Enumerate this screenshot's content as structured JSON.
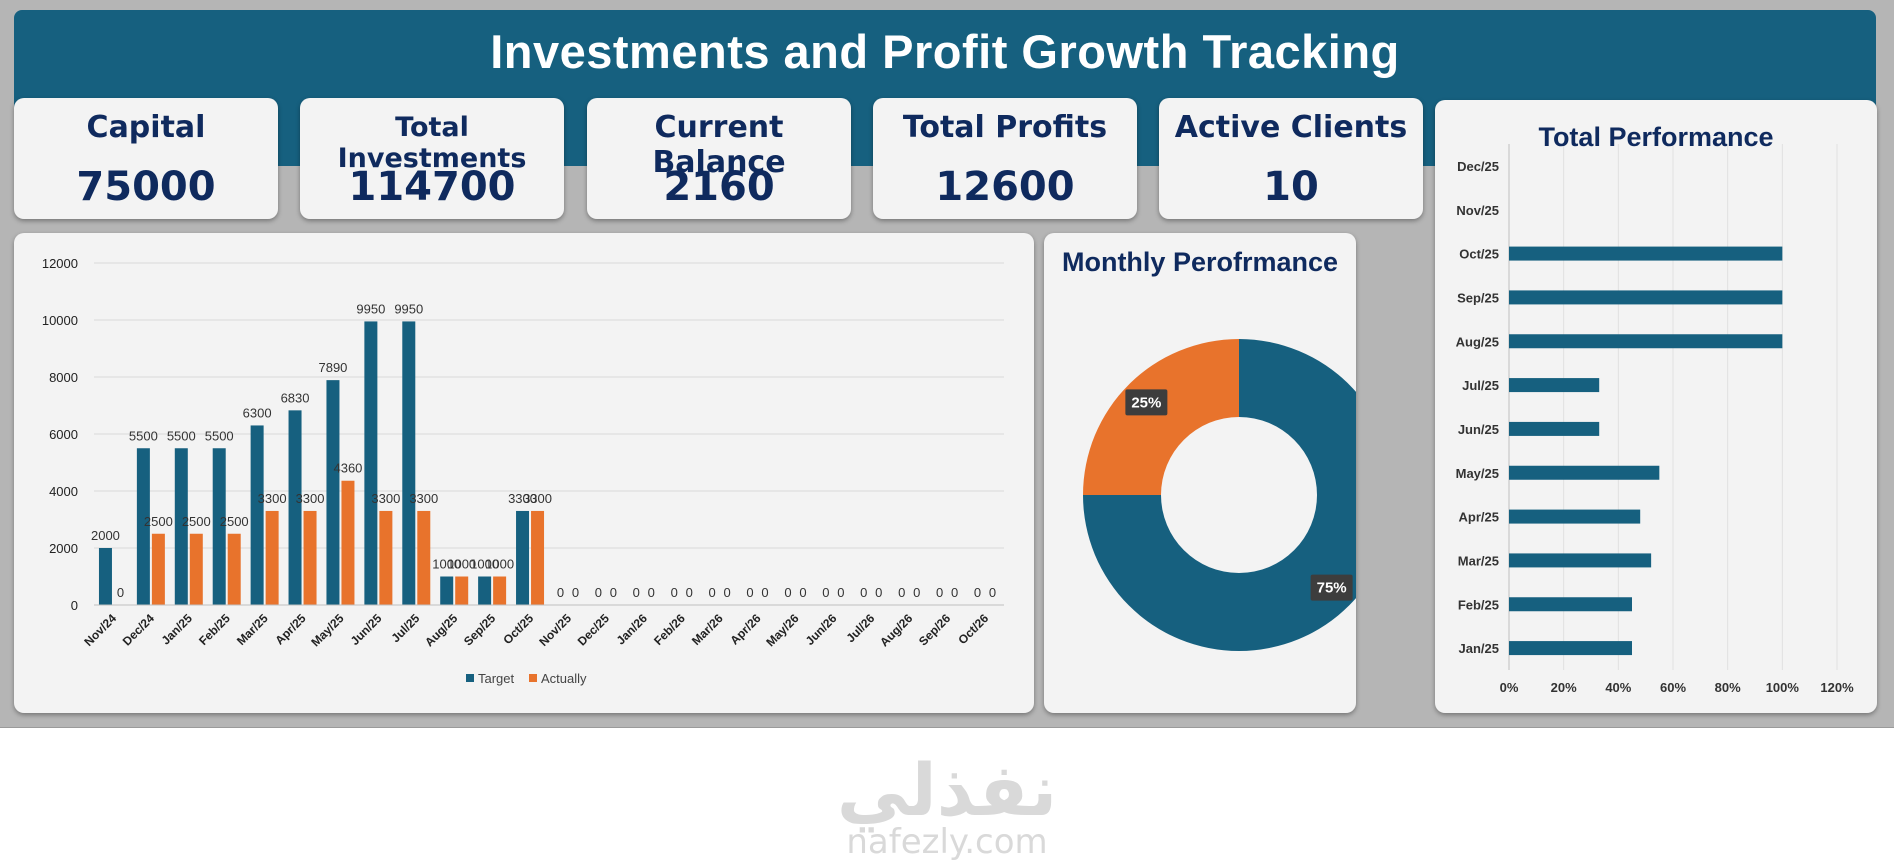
{
  "title": "Investments and Profit Growth Tracking",
  "kpis": [
    {
      "label": "Capital",
      "value": "75000"
    },
    {
      "label": "Total Investments",
      "value": "114700"
    },
    {
      "label": "Current Balance",
      "value": "2160"
    },
    {
      "label": "Total Profits",
      "value": "12600"
    },
    {
      "label": "Active Clients",
      "value": "10"
    }
  ],
  "colors": {
    "banner": "#16607f",
    "target": "#16607f",
    "actual": "#e8732c",
    "text": "#0f2a5e"
  },
  "watermark": {
    "arabic": "نفذلي",
    "latin": "nafezly.com"
  },
  "chart_data": [
    {
      "type": "bar",
      "title": "",
      "categories": [
        "Nov/24",
        "Dec/24",
        "Jan/25",
        "Feb/25",
        "Mar/25",
        "Apr/25",
        "May/25",
        "Jun/25",
        "Jul/25",
        "Aug/25",
        "Sep/25",
        "Oct/25",
        "Nov/25",
        "Dec/25",
        "Jan/26",
        "Feb/26",
        "Mar/26",
        "Apr/26",
        "May/26",
        "Jun/26",
        "Jul/26",
        "Aug/26",
        "Sep/26",
        "Oct/26"
      ],
      "series": [
        {
          "name": "Target",
          "values": [
            2000,
            5500,
            5500,
            5500,
            6300,
            6830,
            7890,
            9950,
            9950,
            1000,
            1000,
            3300,
            0,
            0,
            0,
            0,
            0,
            0,
            0,
            0,
            0,
            0,
            0,
            0
          ]
        },
        {
          "name": "Actually",
          "values": [
            0,
            2500,
            2500,
            2500,
            3300,
            3300,
            4360,
            3300,
            3300,
            1000,
            1000,
            3300,
            0,
            0,
            0,
            0,
            0,
            0,
            0,
            0,
            0,
            0,
            0,
            0
          ]
        }
      ],
      "ylim": [
        0,
        12000
      ],
      "yticks": [
        0,
        2000,
        4000,
        6000,
        8000,
        10000,
        12000
      ],
      "grid": true,
      "legend": "bottom"
    },
    {
      "type": "pie",
      "title": "Monthly Perofrmance",
      "slices": [
        {
          "label": "75%",
          "value": 75,
          "color": "#16607f"
        },
        {
          "label": "25%",
          "value": 25,
          "color": "#e8732c"
        }
      ]
    },
    {
      "type": "bar",
      "orientation": "horizontal",
      "title": "Total Performance",
      "categories": [
        "Jan/25",
        "Feb/25",
        "Mar/25",
        "Apr/25",
        "May/25",
        "Jun/25",
        "Jul/25",
        "Aug/25",
        "Sep/25",
        "Oct/25",
        "Nov/25",
        "Dec/25"
      ],
      "values": [
        45,
        45,
        52,
        48,
        55,
        33,
        33,
        100,
        100,
        100,
        0,
        0
      ],
      "xlim": [
        0,
        120
      ],
      "xticks": [
        "0%",
        "20%",
        "40%",
        "60%",
        "80%",
        "100%",
        "120%"
      ],
      "grid": true
    }
  ]
}
